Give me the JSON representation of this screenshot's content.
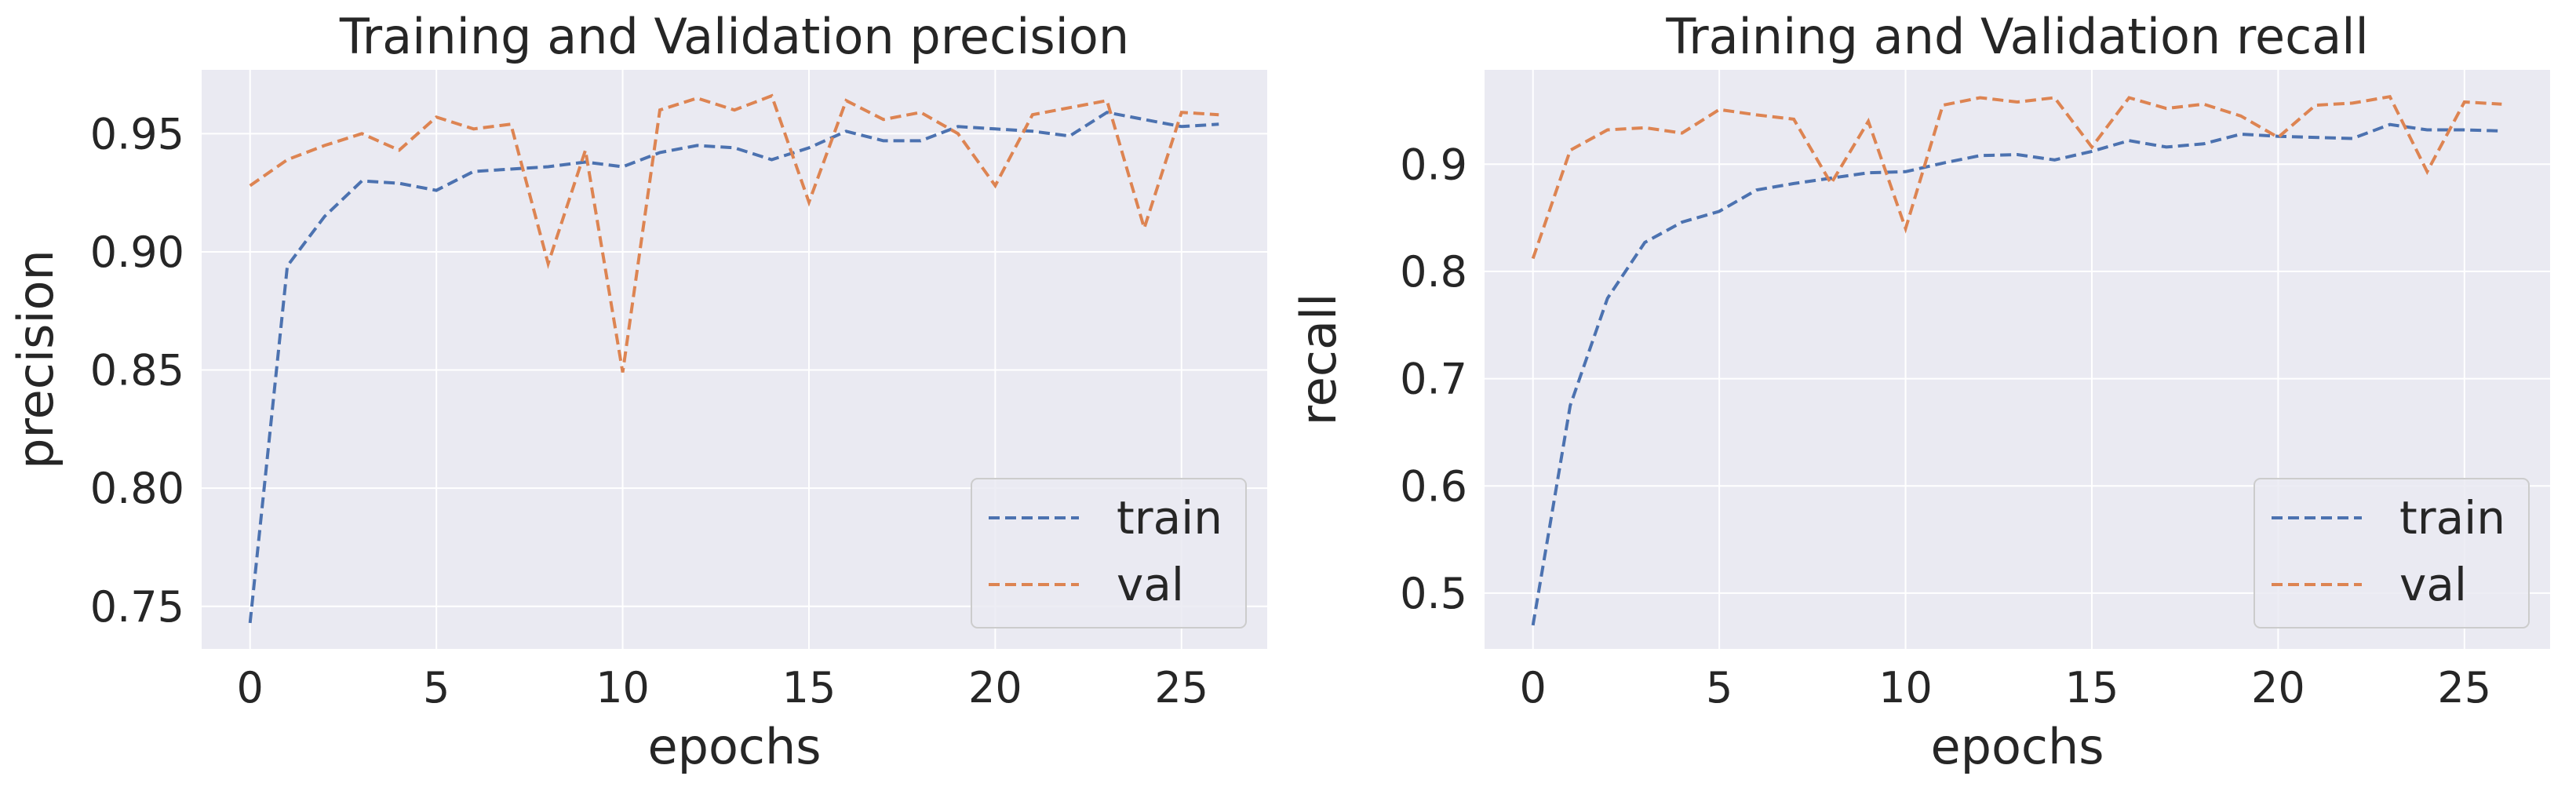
{
  "chart_data": [
    {
      "type": "line",
      "title": "Training and Validation precision",
      "xlabel": "epochs",
      "ylabel": "precision",
      "xlim": [
        -1.3,
        27.3
      ],
      "ylim": [
        0.732,
        0.977
      ],
      "xticks": [
        0,
        5,
        10,
        15,
        20,
        25
      ],
      "xtick_labels": [
        "0",
        "5",
        "10",
        "15",
        "20",
        "25"
      ],
      "yticks": [
        0.75,
        0.8,
        0.85,
        0.9,
        0.95
      ],
      "ytick_labels": [
        "0.75",
        "0.80",
        "0.85",
        "0.90",
        "0.95"
      ],
      "grid": true,
      "legend_position": "lower-right",
      "x": [
        0,
        1,
        2,
        3,
        4,
        5,
        6,
        7,
        8,
        9,
        10,
        11,
        12,
        13,
        14,
        15,
        16,
        17,
        18,
        19,
        20,
        21,
        22,
        23,
        24,
        25,
        26
      ],
      "series": [
        {
          "name": "train",
          "color": "#4c72b0",
          "values": [
            0.743,
            0.894,
            0.915,
            0.93,
            0.929,
            0.926,
            0.934,
            0.935,
            0.936,
            0.938,
            0.936,
            0.942,
            0.945,
            0.944,
            0.939,
            0.944,
            0.951,
            0.947,
            0.947,
            0.953,
            0.952,
            0.951,
            0.949,
            0.959,
            0.956,
            0.953,
            0.954
          ]
        },
        {
          "name": "val",
          "color": "#dd8452",
          "values": [
            0.928,
            0.939,
            0.945,
            0.95,
            0.943,
            0.957,
            0.952,
            0.954,
            0.895,
            0.943,
            0.849,
            0.96,
            0.965,
            0.96,
            0.966,
            0.921,
            0.964,
            0.956,
            0.959,
            0.95,
            0.928,
            0.958,
            0.961,
            0.964,
            0.91,
            0.959,
            0.958
          ]
        }
      ]
    },
    {
      "type": "line",
      "title": "Training and Validation recall",
      "xlabel": "epochs",
      "ylabel": "recall",
      "xlim": [
        -1.3,
        27.3
      ],
      "ylim": [
        0.448,
        0.988
      ],
      "xticks": [
        0,
        5,
        10,
        15,
        20,
        25
      ],
      "xtick_labels": [
        "0",
        "5",
        "10",
        "15",
        "20",
        "25"
      ],
      "yticks": [
        0.5,
        0.6,
        0.7,
        0.8,
        0.9
      ],
      "ytick_labels": [
        "0.5",
        "0.6",
        "0.7",
        "0.8",
        "0.9"
      ],
      "grid": true,
      "legend_position": "lower-right",
      "x": [
        0,
        1,
        2,
        3,
        4,
        5,
        6,
        7,
        8,
        9,
        10,
        11,
        12,
        13,
        14,
        15,
        16,
        17,
        18,
        19,
        20,
        21,
        22,
        23,
        24,
        25,
        26
      ],
      "series": [
        {
          "name": "train",
          "color": "#4c72b0",
          "values": [
            0.47,
            0.675,
            0.775,
            0.827,
            0.846,
            0.856,
            0.876,
            0.882,
            0.887,
            0.892,
            0.893,
            0.901,
            0.908,
            0.909,
            0.904,
            0.912,
            0.922,
            0.916,
            0.919,
            0.928,
            0.926,
            0.925,
            0.924,
            0.937,
            0.932,
            0.932,
            0.931
          ]
        },
        {
          "name": "val",
          "color": "#dd8452",
          "values": [
            0.812,
            0.913,
            0.932,
            0.934,
            0.929,
            0.951,
            0.946,
            0.942,
            0.882,
            0.94,
            0.84,
            0.955,
            0.962,
            0.958,
            0.962,
            0.916,
            0.962,
            0.952,
            0.956,
            0.945,
            0.925,
            0.955,
            0.957,
            0.963,
            0.893,
            0.958,
            0.956
          ]
        }
      ]
    }
  ]
}
